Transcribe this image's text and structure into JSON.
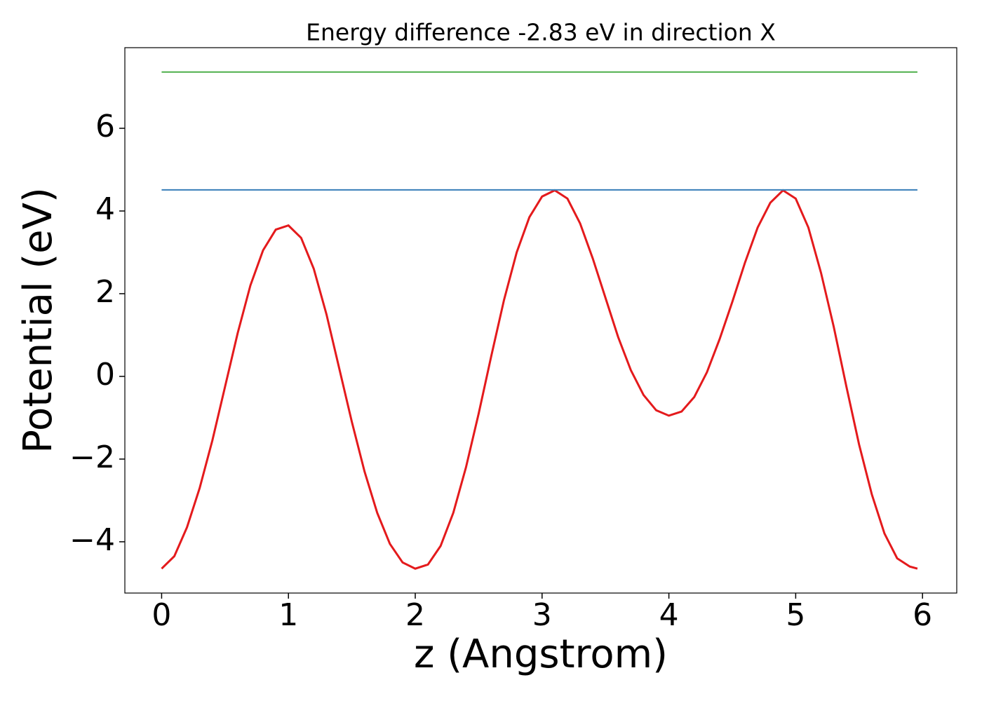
{
  "chart_data": {
    "type": "line",
    "title": "Energy difference -2.83 eV in direction X",
    "xlabel": "z (Angstrom)",
    "ylabel": "Potential (eV)",
    "series": [
      {
        "color": "#e41a1c",
        "x": [
          0,
          0.1,
          0.2,
          0.3,
          0.4,
          0.5,
          0.6,
          0.7,
          0.8,
          0.9,
          1.0,
          1.1,
          1.2,
          1.3,
          1.4,
          1.5,
          1.6,
          1.7,
          1.8,
          1.9,
          2.0,
          2.1,
          2.2,
          2.3,
          2.4,
          2.5,
          2.6,
          2.7,
          2.8,
          2.9,
          3.0,
          3.1,
          3.2,
          3.3,
          3.4,
          3.5,
          3.6,
          3.7,
          3.8,
          3.9,
          4.0,
          4.1,
          4.2,
          4.3,
          4.4,
          4.5,
          4.6,
          4.7,
          4.8,
          4.9,
          5.0,
          5.1,
          5.2,
          5.3,
          5.4,
          5.5,
          5.6,
          5.7,
          5.8,
          5.9,
          5.96
        ],
        "values": [
          -4.65,
          -4.35,
          -3.65,
          -2.7,
          -1.55,
          -0.25,
          1.05,
          2.2,
          3.05,
          3.55,
          3.65,
          3.35,
          2.6,
          1.5,
          0.2,
          -1.1,
          -2.3,
          -3.3,
          -4.05,
          -4.5,
          -4.65,
          -4.55,
          -4.1,
          -3.3,
          -2.2,
          -0.9,
          0.5,
          1.85,
          3.0,
          3.85,
          4.35,
          4.5,
          4.3,
          3.7,
          2.85,
          1.9,
          0.95,
          0.15,
          -0.45,
          -0.82,
          -0.95,
          -0.85,
          -0.5,
          0.1,
          0.9,
          1.8,
          2.75,
          3.6,
          4.2,
          4.5,
          4.3,
          3.6,
          2.5,
          1.2,
          -0.25,
          -1.65,
          -2.85,
          -3.8,
          -4.4,
          -4.6,
          -4.65
        ]
      },
      {
        "color": "#377eb8",
        "x": [
          0,
          5.96
        ],
        "values": [
          4.51,
          4.51
        ]
      },
      {
        "color": "#4daf4a",
        "x": [
          0,
          5.96
        ],
        "values": [
          7.36,
          7.36
        ]
      }
    ],
    "xlim": [
      -0.29,
      6.27
    ],
    "ylim": [
      -5.24,
      7.95
    ],
    "xticks": [
      0,
      1,
      2,
      3,
      4,
      5,
      6
    ],
    "yticks": [
      {
        "value": -4,
        "label": "−4"
      },
      {
        "value": -2,
        "label": "−2"
      },
      0,
      2,
      4,
      6
    ],
    "grid": false
  }
}
